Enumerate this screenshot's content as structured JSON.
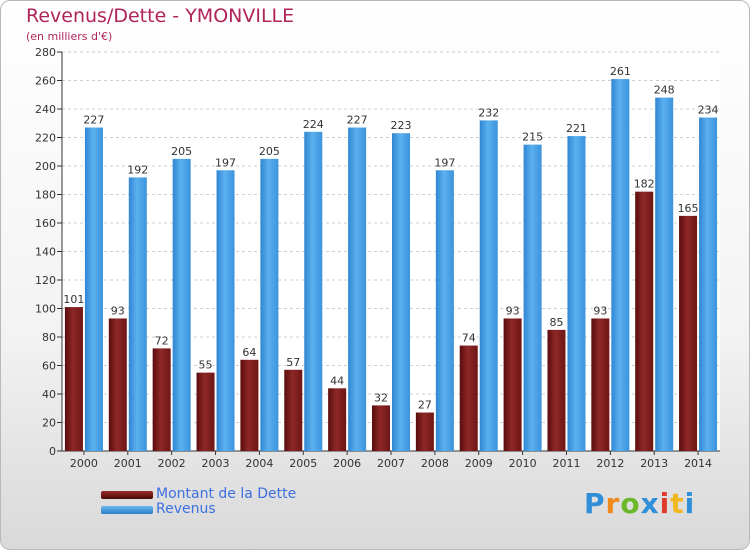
{
  "header": {
    "title": "Revenus/Dette - YMONVILLE",
    "subtitle": "(en milliers d'€)"
  },
  "chart_data": {
    "type": "bar",
    "categories": [
      "2000",
      "2001",
      "2002",
      "2003",
      "2004",
      "2005",
      "2006",
      "2007",
      "2008",
      "2009",
      "2010",
      "2011",
      "2012",
      "2013",
      "2014"
    ],
    "series": [
      {
        "name": "Montant de la Dette",
        "values": [
          101,
          93,
          72,
          55,
          64,
          57,
          44,
          32,
          27,
          74,
          93,
          85,
          93,
          182,
          165
        ],
        "color": "#7a1b1b"
      },
      {
        "name": "Revenus",
        "values": [
          227,
          192,
          205,
          197,
          205,
          224,
          227,
          223,
          197,
          232,
          215,
          221,
          261,
          248,
          234
        ],
        "color": "#3f9ce3"
      }
    ],
    "ylim": [
      0,
      280
    ],
    "yticks": [
      0,
      20,
      40,
      60,
      80,
      100,
      120,
      140,
      160,
      180,
      200,
      220,
      240,
      260,
      280
    ],
    "grid": true,
    "legend": "bottom-left"
  },
  "logo": {
    "letters": [
      "P",
      "r",
      "o",
      "x",
      "i",
      "t",
      "i"
    ],
    "colors": [
      "#2f8fd8",
      "#f08a1e",
      "#6bb82a",
      "#2f8fd8",
      "#e03a2a",
      "#f0b81e",
      "#2f8fd8"
    ]
  }
}
